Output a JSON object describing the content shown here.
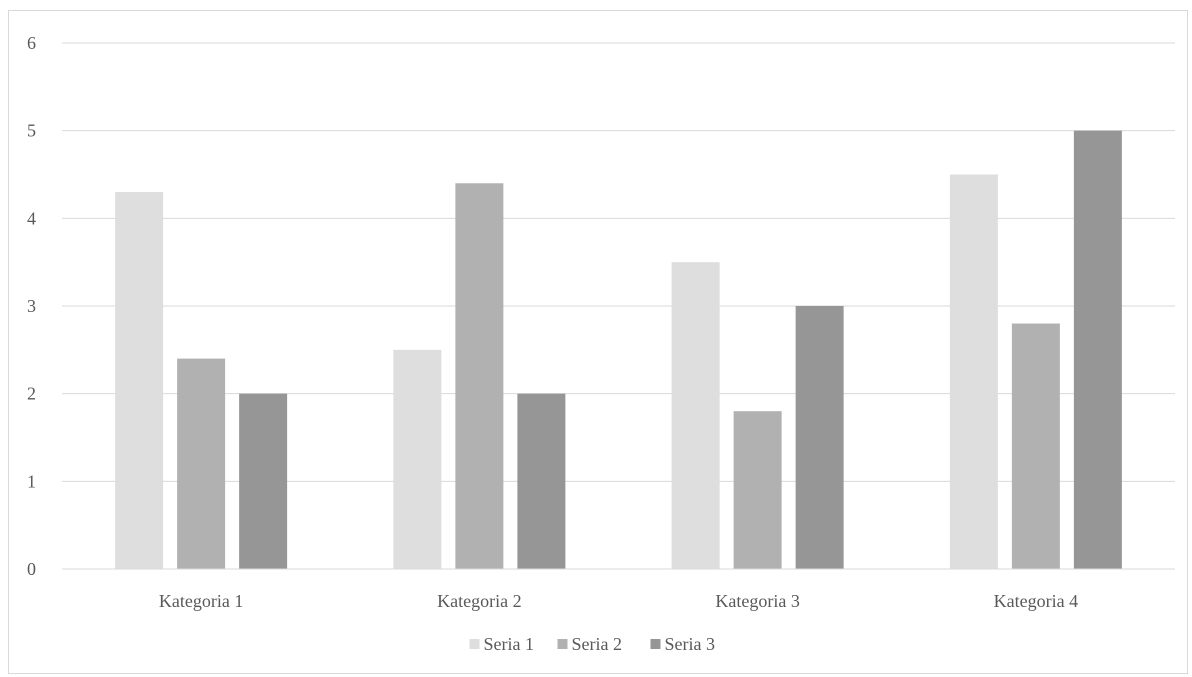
{
  "chart_data": {
    "type": "bar",
    "categories": [
      "Kategoria 1",
      "Kategoria 2",
      "Kategoria 3",
      "Kategoria 4"
    ],
    "series": [
      {
        "name": "Seria 1",
        "values": [
          4.3,
          2.5,
          3.5,
          4.5
        ],
        "color": "#dedede"
      },
      {
        "name": "Seria 2",
        "values": [
          2.4,
          4.4,
          1.8,
          2.8
        ],
        "color": "#b1b1b1"
      },
      {
        "name": "Seria 3",
        "values": [
          2,
          2,
          3,
          5
        ],
        "color": "#969696"
      }
    ],
    "title": "",
    "xlabel": "",
    "ylabel": "",
    "ylim": [
      0,
      6
    ],
    "yticks": [
      "0",
      "1",
      "2",
      "3",
      "4",
      "5",
      "6"
    ],
    "grid": true,
    "legend_position": "bottom"
  }
}
